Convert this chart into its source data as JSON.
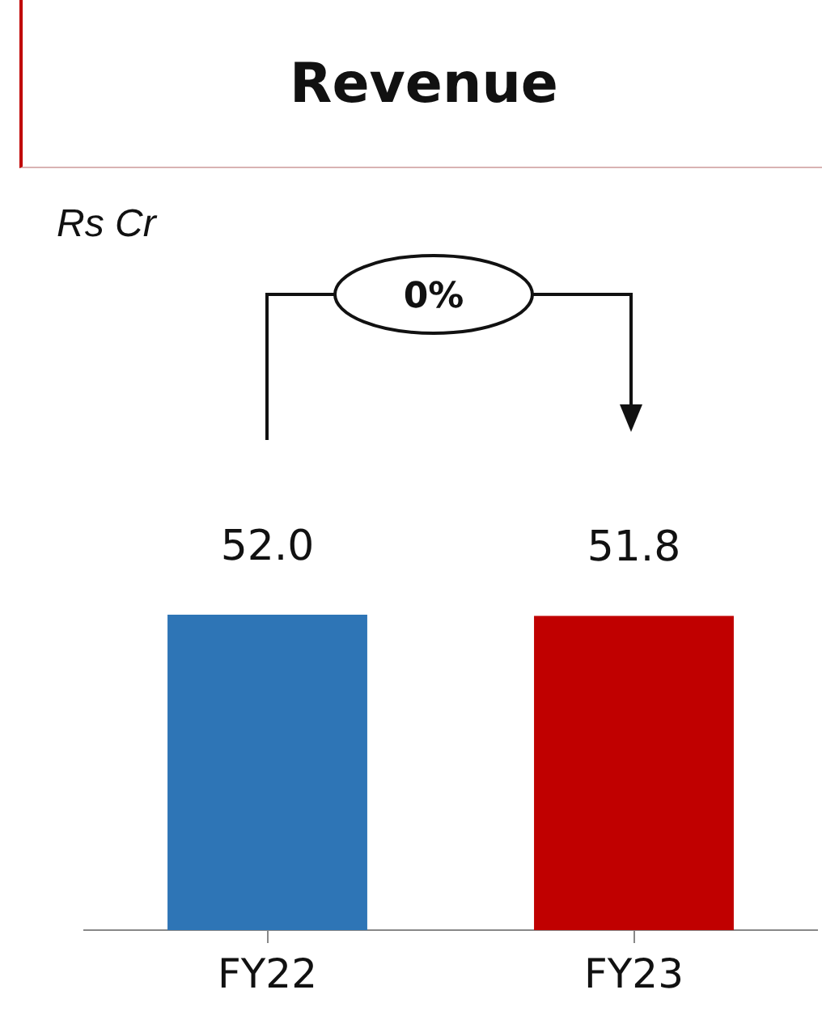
{
  "chart_data": {
    "type": "bar",
    "title": "Revenue",
    "categories": [
      "FY22",
      "FY23"
    ],
    "values": [
      52.0,
      51.8
    ],
    "colors": [
      "#2e75b6",
      "#c00000"
    ],
    "value_labels": [
      "52.0",
      "51.8"
    ],
    "annotations": [
      "Rs Cr",
      "0%"
    ],
    "grid": false,
    "legend": false
  }
}
